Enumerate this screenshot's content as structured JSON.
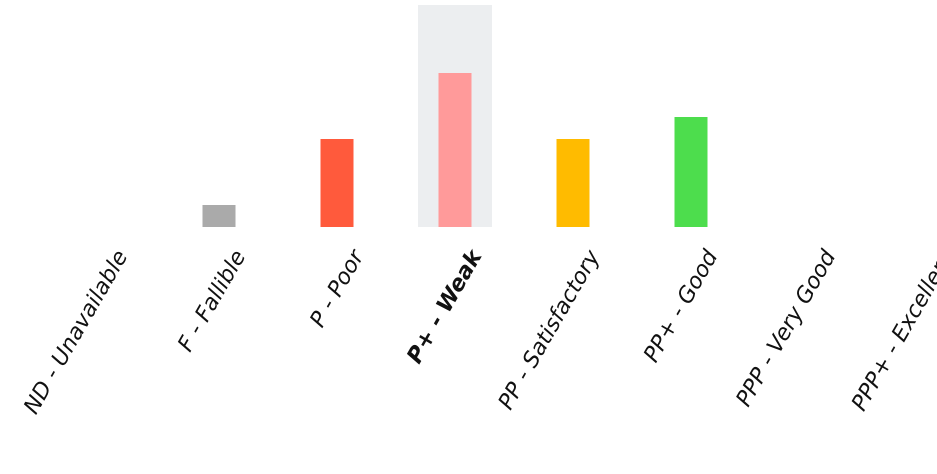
{
  "chart_data": {
    "type": "bar",
    "title": "",
    "xlabel": "",
    "ylabel": "",
    "ylim": [
      0,
      10
    ],
    "grid": false,
    "legend": "none",
    "categories": [
      "ND - Unavailable",
      "F - Fallible",
      "P - Poor",
      "P+ - Weak",
      "PP - Satisfactory",
      "PP+ - Good",
      "PPP - Very Good",
      "PPP+ - Excellent"
    ],
    "values": [
      0,
      1,
      4,
      7,
      4,
      5,
      0,
      0
    ],
    "colors": [
      "#aaaaaa",
      "#aaaaaa",
      "#ff5a3c",
      "#ff9a9a",
      "#ffbb00",
      "#4ddd4d",
      "#4ddd4d",
      "#4ddd4d"
    ],
    "highlighted_category": "P+ - Weak",
    "highlight_color": "#eceef0"
  }
}
